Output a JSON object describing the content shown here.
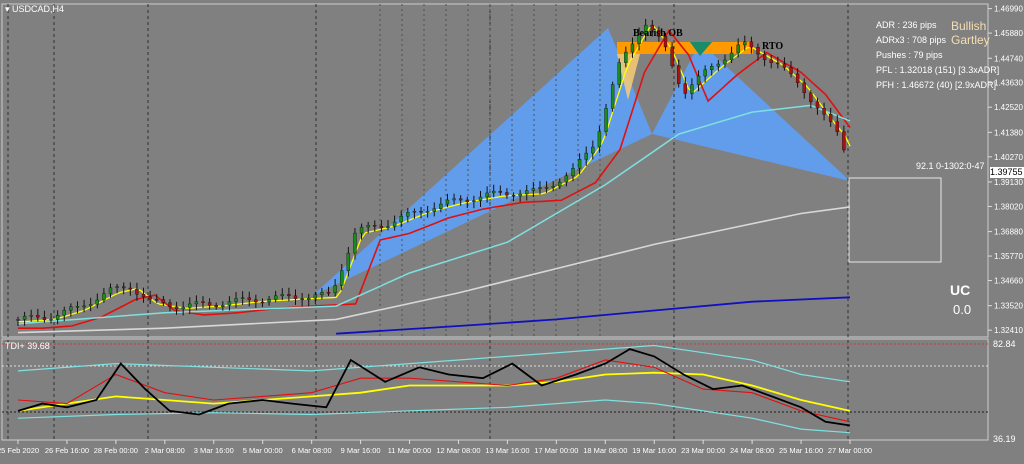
{
  "window": {
    "symbol_label": "USDCAD,H4"
  },
  "price_axis": {
    "ticks": [
      {
        "label": "1.46990",
        "v": 1.4699
      },
      {
        "label": "1.45880",
        "v": 1.4588
      },
      {
        "label": "1.44740",
        "v": 1.4474
      },
      {
        "label": "1.43630",
        "v": 1.4363
      },
      {
        "label": "1.42520",
        "v": 1.4252
      },
      {
        "label": "1.41380",
        "v": 1.4138
      },
      {
        "label": "1.40270",
        "v": 1.4027
      },
      {
        "label": "1.39130",
        "v": 1.3913
      },
      {
        "label": "1.38020",
        "v": 1.3802
      },
      {
        "label": "1.36880",
        "v": 1.3688
      },
      {
        "label": "1.35770",
        "v": 1.3577
      },
      {
        "label": "1.34660",
        "v": 1.3466
      },
      {
        "label": "1.33520",
        "v": 1.3352
      },
      {
        "label": "1.32410",
        "v": 1.3241
      }
    ],
    "current_price": "1.39755",
    "ylim": [
      1.321,
      1.472
    ]
  },
  "indicator": {
    "label": "TDI+ 39.68",
    "top_value": "82.84",
    "bottom_value": "36.19",
    "ylim": [
      30,
      85
    ]
  },
  "time_axis": [
    "25 Feb 2020",
    "26 Feb 16:00",
    "28 Feb 00:00",
    "2 Mar 08:00",
    "3 Mar 16:00",
    "5 Mar 00:00",
    "6 Mar 08:00",
    "9 Mar 16:00",
    "11 Mar 00:00",
    "12 Mar 08:00",
    "13 Mar 16:00",
    "17 Mar 00:00",
    "18 Mar 08:00",
    "19 Mar 16:00",
    "23 Mar 00:00",
    "24 Mar 08:00",
    "25 Mar 16:00",
    "27 Mar 00:00"
  ],
  "info_panel": {
    "lines": [
      "ADR : 236 pips",
      "ADRx3 : 708 pips",
      "Pushes : 79 pips",
      "PFL : 1.32018 (151) [3.3xADR]",
      "PFH : 1.46672 (40) [2.9xADR]"
    ]
  },
  "pattern": {
    "line1": "Bullish",
    "line2": "Gartley"
  },
  "annotations": {
    "bearish_ob": "Bearish OB",
    "rto": "RTO",
    "box_label": "92.1 0-1302:0-47"
  },
  "uc": {
    "label": "UC",
    "value": "0.0"
  },
  "colors": {
    "background": "#808080",
    "bull_candle": "#1a8c1a",
    "bear_candle": "#aa1111",
    "pattern_fill": "#5f9ef0",
    "order_block": "#ff9900",
    "ema_yellow": "#ffff00",
    "ema_red": "#e01010",
    "ema_cyan": "#7fe0e0",
    "ema_white": "#d8d8d8",
    "ema_blue": "#1010c0",
    "pattern_text": "#f5deb3"
  },
  "chart_data": {
    "type": "candlestick",
    "title": "USDCAD,H4",
    "x": [
      "25 Feb 2020",
      "26 Feb 16:00",
      "28 Feb 00:00",
      "2 Mar 08:00",
      "3 Mar 16:00",
      "5 Mar 00:00",
      "6 Mar 08:00",
      "9 Mar 16:00",
      "11 Mar 00:00",
      "12 Mar 08:00",
      "13 Mar 16:00",
      "17 Mar 00:00",
      "18 Mar 08:00",
      "19 Mar 16:00",
      "23 Mar 00:00",
      "24 Mar 08:00",
      "25 Mar 16:00",
      "27 Mar 00:00"
    ],
    "close_approx": [
      1.329,
      1.333,
      1.344,
      1.334,
      1.337,
      1.338,
      1.341,
      1.37,
      1.378,
      1.387,
      1.392,
      1.415,
      1.462,
      1.437,
      1.45,
      1.447,
      1.422,
      1.398
    ],
    "ylim": [
      1.321,
      1.472
    ]
  }
}
